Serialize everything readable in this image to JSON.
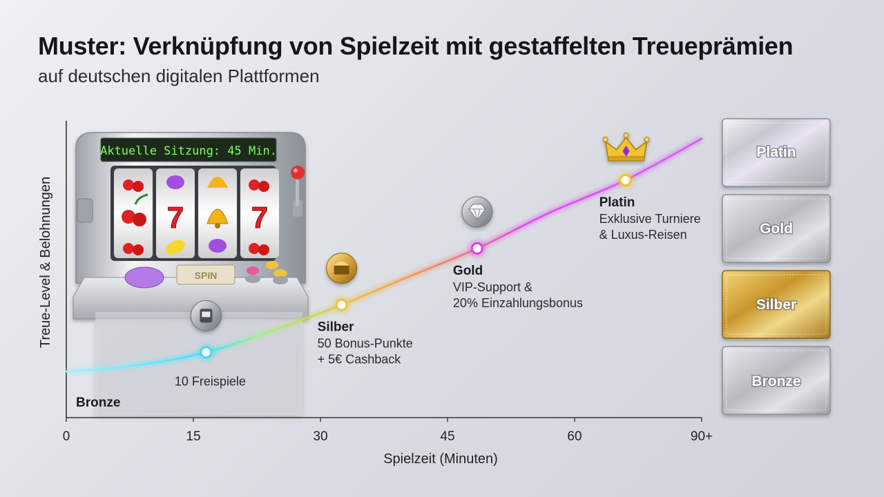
{
  "title": "Muster: Verknüpfung von Spielzeit mit gestaffelten Treueprämien",
  "subtitle": "auf deutschen digitalen Plattformen",
  "slot_machine": {
    "display_text": "Aktuelle Sitzung: 45 Min.",
    "spin_label": "SPIN"
  },
  "tier_cards": [
    {
      "label": "Platin",
      "style": "platinum"
    },
    {
      "label": "Gold",
      "style": "silver"
    },
    {
      "label": "Silber",
      "style": "gold"
    },
    {
      "label": "Bronze",
      "style": "silver"
    }
  ],
  "colors": {
    "curve_start": "#40e0ff",
    "curve_mid": "#f0c23a",
    "curve_end": "#e04bf0",
    "axis": "#333333"
  },
  "chart_data": {
    "type": "line",
    "xlabel": "Spielzeit (Minuten)",
    "ylabel": "Treue-Level & Belohnungen",
    "x_ticks": [
      "0",
      "15",
      "30",
      "45",
      "60",
      "90+"
    ],
    "xlim": [
      0,
      75
    ],
    "ylim": [
      0,
      1
    ],
    "start_label": "Bronze",
    "curve": {
      "x": [
        0,
        8,
        16.5,
        25,
        32.5,
        40,
        48.5,
        57,
        66,
        75
      ],
      "y": [
        0.155,
        0.175,
        0.22,
        0.3,
        0.38,
        0.47,
        0.57,
        0.69,
        0.8,
        0.94
      ]
    },
    "milestones": [
      {
        "x": 16.5,
        "y": 0.22,
        "title": "",
        "lines": [
          "10 Freispiele"
        ],
        "color": "#40d8f0",
        "icon": "slot-icon"
      },
      {
        "x": 32.5,
        "y": 0.38,
        "title": "Silber",
        "lines": [
          "50 Bonus-Punkte",
          "+ 5€ Cashback"
        ],
        "color": "#f0c23a",
        "icon": "treasure-chest-icon"
      },
      {
        "x": 48.5,
        "y": 0.57,
        "title": "Gold",
        "lines": [
          "VIP-Support &",
          "20% Einzahlungsbonus"
        ],
        "color": "#e040e0",
        "icon": "diamond-icon"
      },
      {
        "x": 66,
        "y": 0.8,
        "title": "Platin",
        "lines": [
          "Exklusive Turniere",
          "& Luxus-Reisen"
        ],
        "color": "#f2c230",
        "icon": "crown-icon"
      }
    ]
  }
}
